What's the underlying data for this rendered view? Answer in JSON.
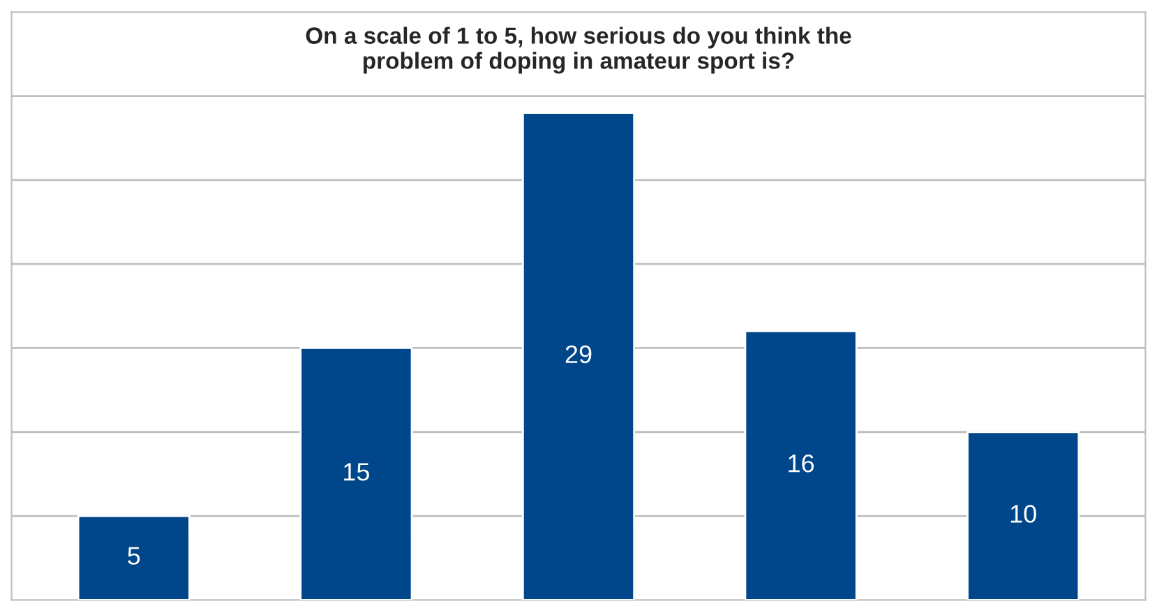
{
  "chart_data": {
    "type": "bar",
    "title": "On a scale of 1 to 5, how serious do you think the\nproblem of doping in amateur sport is?",
    "categories": [
      null,
      null,
      null,
      null,
      null
    ],
    "values": [
      5,
      15,
      29,
      16,
      10
    ],
    "color": "#00468b",
    "data_labels": true,
    "relative": false,
    "ylim": [
      0,
      35
    ],
    "yticks": [
      {
        "value": 5,
        "label": null
      },
      {
        "value": 10,
        "label": null
      },
      {
        "value": 15,
        "label": null
      },
      {
        "value": 20,
        "label": null
      },
      {
        "value": 25,
        "label": null
      },
      {
        "value": 30,
        "label": null
      }
    ],
    "grid": "y",
    "legend": false
  }
}
